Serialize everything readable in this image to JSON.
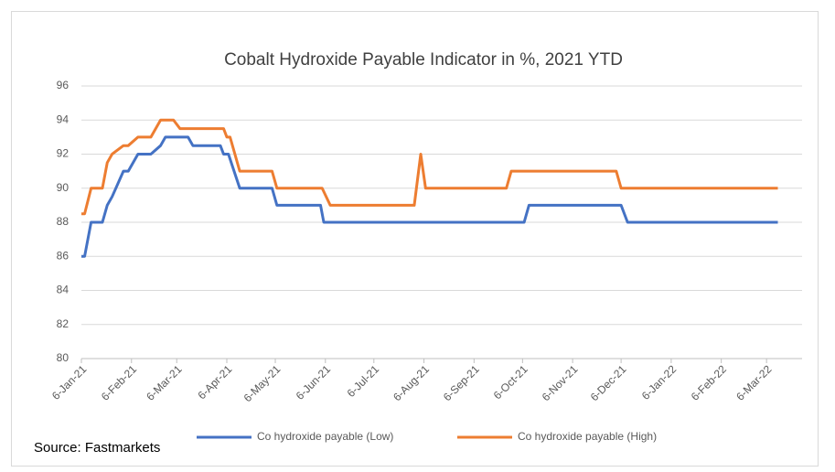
{
  "chart_data": {
    "type": "line",
    "title": "Cobalt Hydroxide Payable Indicator in %, 2021 YTD",
    "source": "Source: Fastmarkets",
    "ylim": [
      80,
      96
    ],
    "yticks": [
      80,
      82,
      84,
      86,
      88,
      90,
      92,
      94,
      96
    ],
    "xlim": [
      "2021-01-06",
      "2022-03-28"
    ],
    "xticks": [
      {
        "value": "2021-01-06",
        "label": "6-Jan-21"
      },
      {
        "value": "2021-02-06",
        "label": "6-Feb-21"
      },
      {
        "value": "2021-03-06",
        "label": "6-Mar-21"
      },
      {
        "value": "2021-04-06",
        "label": "6-Apr-21"
      },
      {
        "value": "2021-05-06",
        "label": "6-May-21"
      },
      {
        "value": "2021-06-06",
        "label": "6-Jun-21"
      },
      {
        "value": "2021-07-06",
        "label": "6-Jul-21"
      },
      {
        "value": "2021-08-06",
        "label": "6-Aug-21"
      },
      {
        "value": "2021-09-06",
        "label": "6-Sep-21"
      },
      {
        "value": "2021-10-06",
        "label": "6-Oct-21"
      },
      {
        "value": "2021-11-06",
        "label": "6-Nov-21"
      },
      {
        "value": "2021-12-06",
        "label": "6-Dec-21"
      },
      {
        "value": "2022-01-06",
        "label": "6-Jan-22"
      },
      {
        "value": "2022-02-06",
        "label": "6-Feb-22"
      },
      {
        "value": "2022-03-06",
        "label": "6-Mar-22"
      }
    ],
    "grid": true,
    "legend": "bottom",
    "series": [
      {
        "name": "Co hydroxide payable (Low)",
        "color": "#4472c4",
        "x": [
          "2021-01-06",
          "2021-01-08",
          "2021-01-12",
          "2021-01-19",
          "2021-01-22",
          "2021-01-25",
          "2021-02-01",
          "2021-02-04",
          "2021-02-10",
          "2021-02-18",
          "2021-02-24",
          "2021-02-27",
          "2021-03-13",
          "2021-03-16",
          "2021-04-02",
          "2021-04-04",
          "2021-04-07",
          "2021-04-14",
          "2021-05-04",
          "2021-05-07",
          "2021-06-03",
          "2021-06-05",
          "2021-10-07",
          "2021-10-10",
          "2021-12-06",
          "2021-12-10",
          "2022-03-13"
        ],
        "values": [
          86,
          86,
          88,
          88,
          89,
          89.5,
          91,
          91,
          92,
          92,
          92.5,
          93,
          93,
          92.5,
          92.5,
          92,
          92,
          90,
          90,
          89,
          89,
          88,
          88,
          89,
          89,
          88,
          88
        ]
      },
      {
        "name": "Co hydroxide payable (High)",
        "color": "#ed7d31",
        "x": [
          "2021-01-06",
          "2021-01-08",
          "2021-01-12",
          "2021-01-19",
          "2021-01-22",
          "2021-01-25",
          "2021-02-01",
          "2021-02-04",
          "2021-02-10",
          "2021-02-18",
          "2021-02-24",
          "2021-03-04",
          "2021-03-08",
          "2021-04-04",
          "2021-04-06",
          "2021-04-08",
          "2021-04-14",
          "2021-05-04",
          "2021-05-07",
          "2021-06-04",
          "2021-06-09",
          "2021-07-31",
          "2021-08-04",
          "2021-08-07",
          "2021-09-26",
          "2021-09-29",
          "2021-12-03",
          "2021-12-06",
          "2022-03-13"
        ],
        "values": [
          88.5,
          88.5,
          90,
          90,
          91.5,
          92,
          92.5,
          92.5,
          93,
          93,
          94,
          94,
          93.5,
          93.5,
          93,
          93,
          91,
          91,
          90,
          90,
          89,
          89,
          92,
          90,
          90,
          91,
          91,
          90,
          90
        ]
      }
    ]
  }
}
